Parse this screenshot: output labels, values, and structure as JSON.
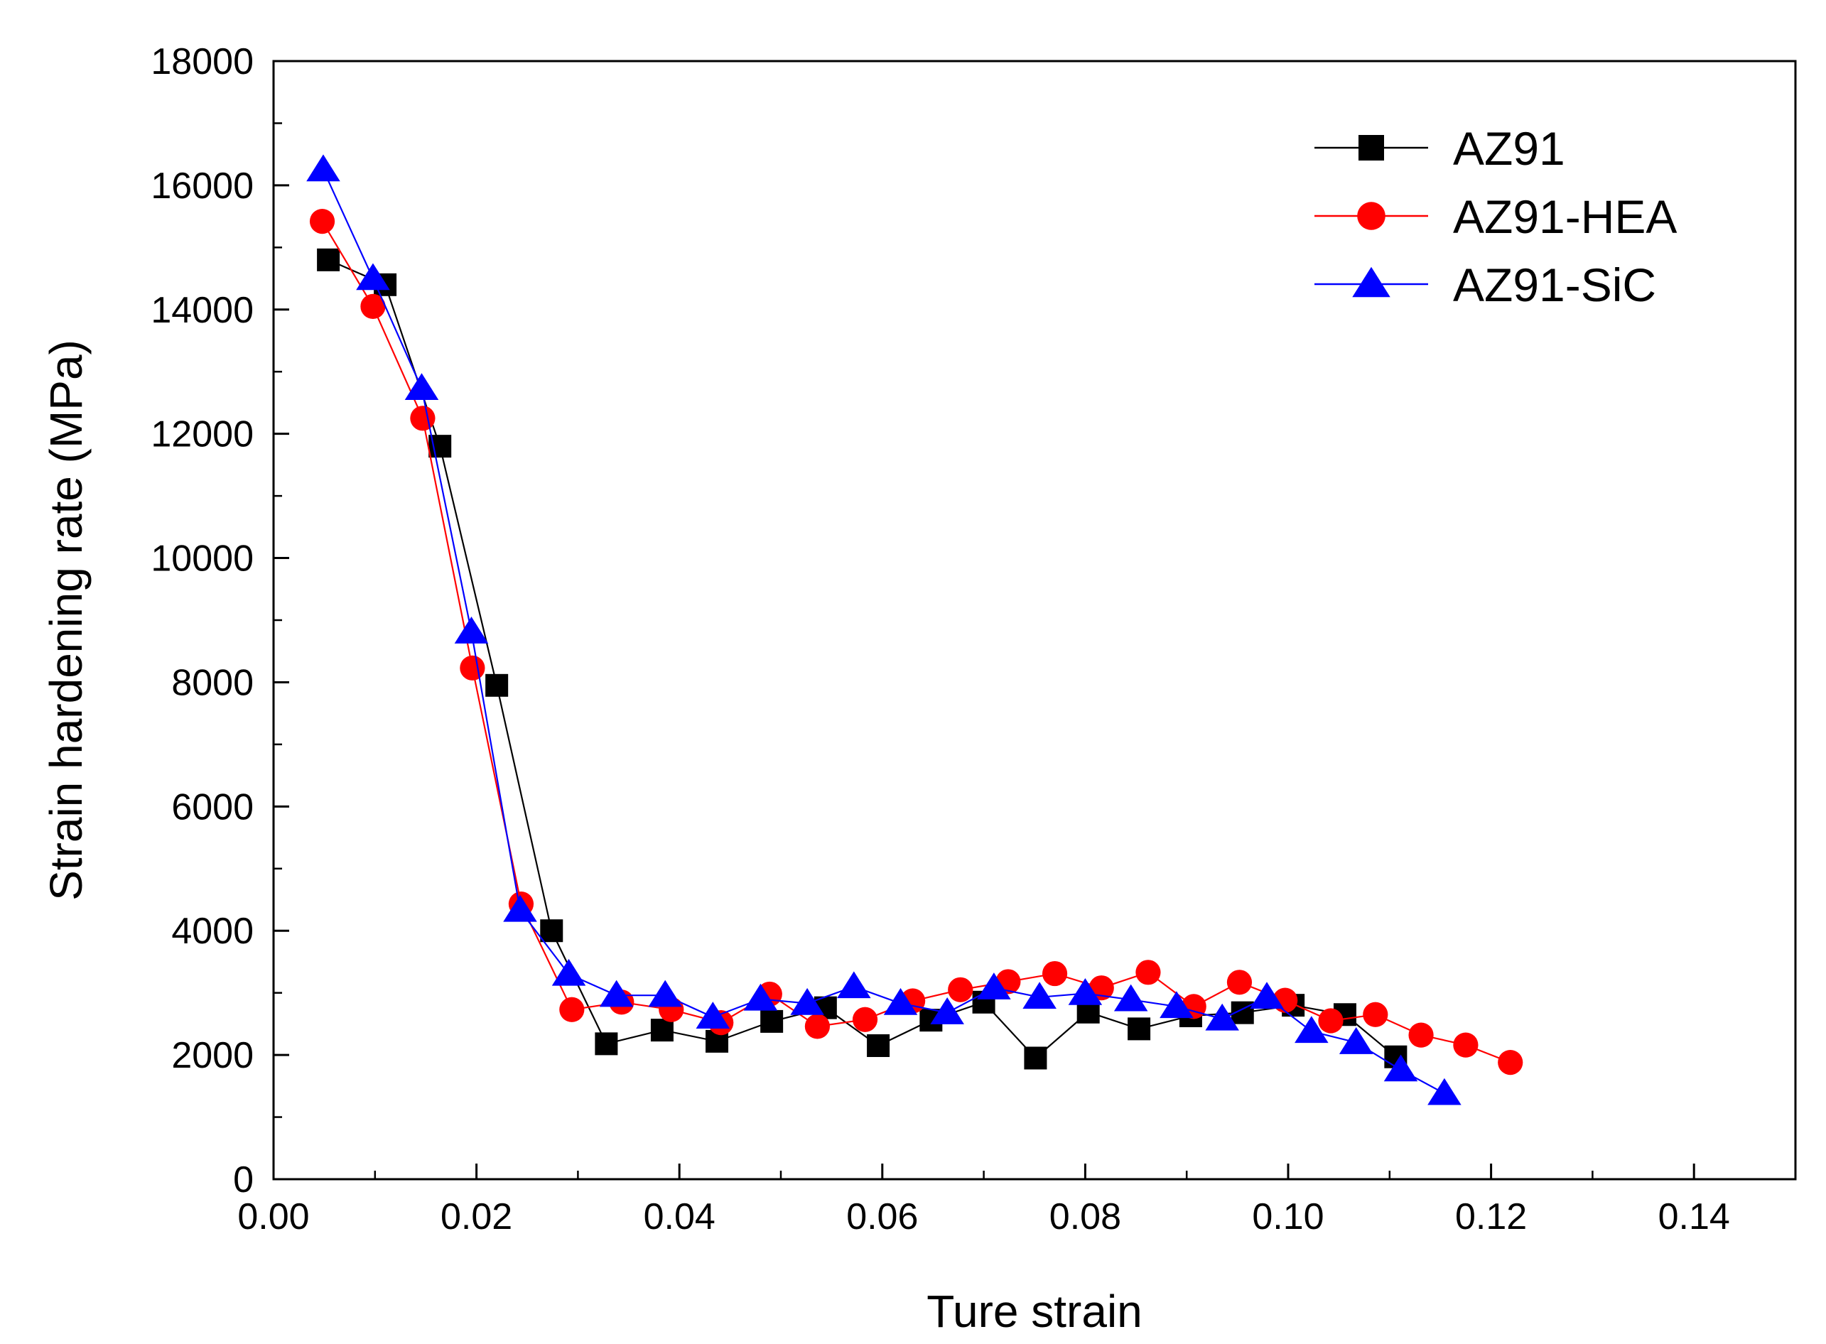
{
  "chart_data": {
    "type": "line",
    "title": "",
    "xlabel": "Ture strain",
    "ylabel": "Strain hardening rate (MPa)",
    "xlim": [
      0,
      0.15
    ],
    "ylim": [
      0,
      18000
    ],
    "xticks": [
      0.0,
      0.02,
      0.04,
      0.06,
      0.08,
      0.1,
      0.12,
      0.14
    ],
    "xtick_labels": [
      "0.00",
      "0.02",
      "0.04",
      "0.06",
      "0.08",
      "0.10",
      "0.12",
      "0.14"
    ],
    "yticks": [
      0,
      2000,
      4000,
      6000,
      8000,
      10000,
      12000,
      14000,
      16000,
      18000
    ],
    "ytick_labels": [
      "0",
      "2000",
      "4000",
      "6000",
      "8000",
      "10000",
      "12000",
      "14000",
      "16000",
      "18000"
    ],
    "grid": false,
    "legend_position": "top-right",
    "series": [
      {
        "name": "AZ91",
        "color": "#000000",
        "marker": "square",
        "x": [
          0.0054,
          0.011,
          0.0164,
          0.022,
          0.0274,
          0.0328,
          0.0383,
          0.0437,
          0.0491,
          0.0544,
          0.0596,
          0.0648,
          0.07,
          0.0751,
          0.0803,
          0.0853,
          0.0904,
          0.0955,
          0.1005,
          0.1056,
          0.1106
        ],
        "y": [
          14800,
          14400,
          11800,
          7950,
          4000,
          2180,
          2400,
          2220,
          2540,
          2760,
          2150,
          2560,
          2850,
          1950,
          2690,
          2420,
          2630,
          2680,
          2800,
          2650,
          1970
        ]
      },
      {
        "name": "AZ91-HEA",
        "color": "#ff0000",
        "marker": "circle",
        "x": [
          0.0048,
          0.0098,
          0.0147,
          0.0196,
          0.0244,
          0.0294,
          0.0343,
          0.0392,
          0.0441,
          0.0489,
          0.0536,
          0.0583,
          0.063,
          0.0677,
          0.0724,
          0.077,
          0.0816,
          0.0862,
          0.0907,
          0.0952,
          0.0997,
          0.1042,
          0.1086,
          0.1131,
          0.1175,
          0.1219
        ],
        "y": [
          15420,
          14050,
          12250,
          8230,
          4430,
          2730,
          2850,
          2730,
          2520,
          2980,
          2460,
          2570,
          2870,
          3050,
          3180,
          3310,
          3080,
          3330,
          2780,
          3170,
          2880,
          2550,
          2650,
          2320,
          2160,
          1880
        ]
      },
      {
        "name": "AZ91-SiC",
        "color": "#0000ff",
        "marker": "triangle",
        "x": [
          0.0049,
          0.0098,
          0.0146,
          0.0195,
          0.0243,
          0.0291,
          0.0338,
          0.0386,
          0.0433,
          0.048,
          0.0526,
          0.0572,
          0.0618,
          0.0664,
          0.071,
          0.0755,
          0.08,
          0.0845,
          0.089,
          0.0935,
          0.0979,
          0.1023,
          0.1067,
          0.1111,
          0.1154
        ],
        "y": [
          16250,
          14500,
          12730,
          8810,
          4330,
          3300,
          2960,
          2960,
          2610,
          2900,
          2830,
          3100,
          2830,
          2680,
          3080,
          2930,
          2990,
          2890,
          2780,
          2580,
          2930,
          2380,
          2200,
          1760,
          1380
        ]
      }
    ]
  }
}
